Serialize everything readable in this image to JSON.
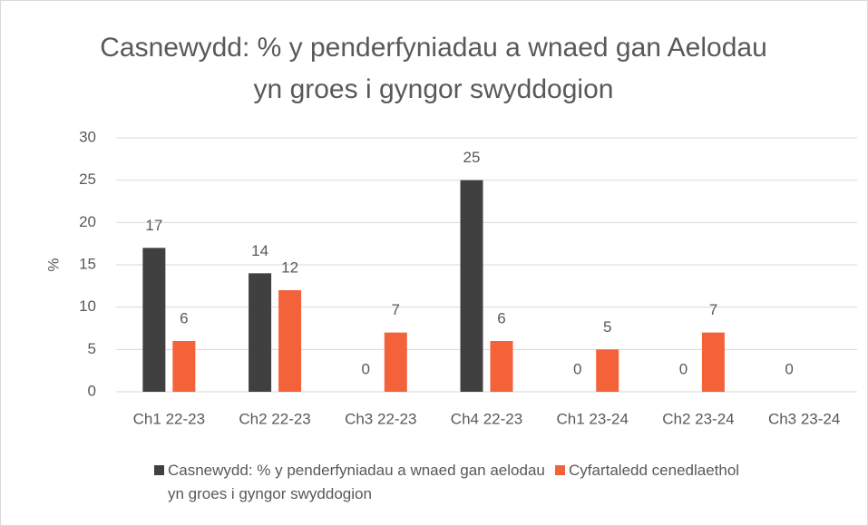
{
  "chart_data": {
    "type": "bar",
    "title": "Casnewydd: % y penderfyniadau a wnaed gan Aelodau yn groes i gyngor swyddogion",
    "y_label": "%",
    "categories": [
      "Ch1 22-23",
      "Ch2 22-23",
      "Ch3 22-23",
      "Ch4 22-23",
      "Ch1 23-24",
      "Ch2 23-24",
      "Ch3 23-24"
    ],
    "series": [
      {
        "name": "Casnewydd: % y penderfyniadau a wnaed gan aelodau yn groes i gyngor swyddogion",
        "color": "#404040",
        "values": [
          17,
          14,
          0,
          25,
          0,
          0,
          0
        ]
      },
      {
        "name": "Cyfartaledd cenedlaethol",
        "color": "#f4623a",
        "values": [
          6,
          12,
          7,
          6,
          5,
          7,
          null
        ]
      }
    ],
    "ylim": [
      0,
      30
    ],
    "yticks": [
      0,
      5,
      10,
      15,
      20,
      25,
      30
    ],
    "grid": true,
    "legend": "bottom"
  }
}
